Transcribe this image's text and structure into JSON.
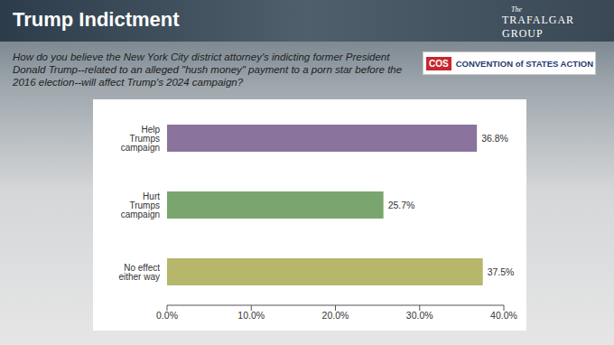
{
  "chart_data": {
    "type": "bar",
    "title": "Trump Indictment",
    "subtitle": "How do you believe the New York City district attorney's indicting former President Donald Trump--related to an alleged \"hush money\" payment to a porn star before the 2016 election--will affect Trump's 2024 campaign?",
    "annotations": [
      "The",
      "TRAFALGAR GROUP",
      "COS",
      "CONVENTION of STATES ACTION"
    ],
    "orientation": "horizontal",
    "categories": [
      "Help Trumps campaign",
      "Hurt Trumps campaign",
      "No effect either way"
    ],
    "values": [
      36.8,
      25.7,
      37.5
    ],
    "value_labels": [
      "36.8%",
      "25.7%",
      "37.5%"
    ],
    "data_labels": true,
    "colors": [
      "#8a739c",
      "#7ba56e",
      "#b6b76b"
    ],
    "xlim": [
      0,
      40
    ],
    "xticks": [
      {
        "value": 0,
        "label": "0.0%"
      },
      {
        "value": 10,
        "label": "10.0%"
      },
      {
        "value": 20,
        "label": "20.0%"
      },
      {
        "value": 30,
        "label": "30.0%"
      },
      {
        "value": 40,
        "label": "40.0%"
      }
    ],
    "grid": false
  }
}
